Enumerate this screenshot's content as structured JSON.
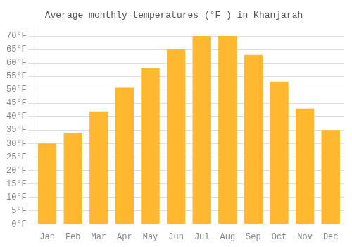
{
  "chart_data": {
    "type": "bar",
    "title": "Average monthly temperatures (°F ) in Khanjarah",
    "categories": [
      "Jan",
      "Feb",
      "Mar",
      "Apr",
      "May",
      "Jun",
      "Jul",
      "Aug",
      "Sep",
      "Oct",
      "Nov",
      "Dec"
    ],
    "values": [
      30,
      34,
      42,
      51,
      58,
      65,
      70,
      70,
      63,
      53,
      43,
      35
    ],
    "color": "#FFB830",
    "ylim": [
      0,
      73
    ],
    "yticks": [
      {
        "value": 0,
        "label": "0°F"
      },
      {
        "value": 5,
        "label": "5°F"
      },
      {
        "value": 10,
        "label": "10°F"
      },
      {
        "value": 15,
        "label": "15°F"
      },
      {
        "value": 20,
        "label": "20°F"
      },
      {
        "value": 25,
        "label": "25°F"
      },
      {
        "value": 30,
        "label": "30°F"
      },
      {
        "value": 35,
        "label": "35°F"
      },
      {
        "value": 40,
        "label": "40°F"
      },
      {
        "value": 45,
        "label": "45°F"
      },
      {
        "value": 50,
        "label": "50°F"
      },
      {
        "value": 55,
        "label": "55°F"
      },
      {
        "value": 60,
        "label": "60°F"
      },
      {
        "value": 65,
        "label": "65°F"
      },
      {
        "value": 70,
        "label": "70°F"
      }
    ],
    "grid": true
  }
}
